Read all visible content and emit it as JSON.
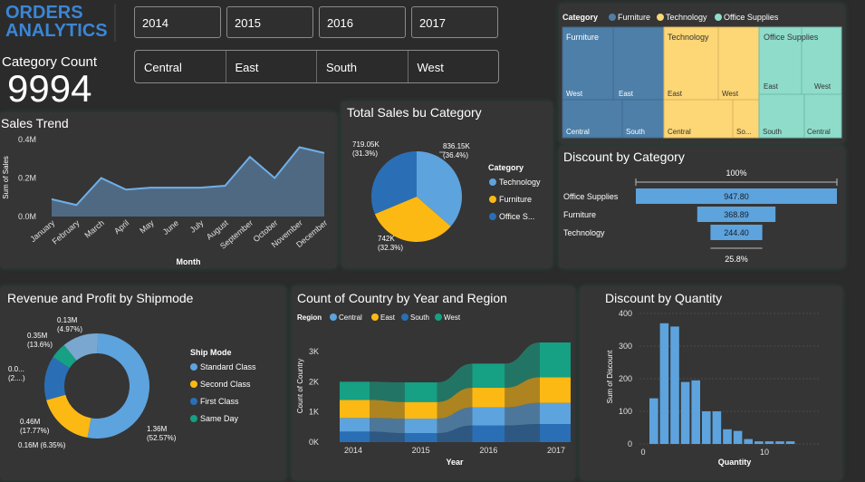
{
  "header": {
    "title_line1": "ORDERS",
    "title_line2": "ANALYTICS"
  },
  "years": [
    "2014",
    "2015",
    "2016",
    "2017"
  ],
  "regions": [
    "Central",
    "East",
    "South",
    "West"
  ],
  "kpi": {
    "label": "Category Count",
    "value": "9994"
  },
  "colors": {
    "blue": "#5da3de",
    "yellow": "#fdb913",
    "dark_blue": "#2a6fb5",
    "teal": "#16a084",
    "furniture": "#4e7fa8",
    "technology": "#fdd676",
    "office": "#8fdccb",
    "area": "#536f8c"
  },
  "sales_trend": {
    "title": "Sales Trend",
    "chart_data": {
      "type": "area",
      "categories": [
        "January",
        "February",
        "March",
        "April",
        "May",
        "June",
        "July",
        "August",
        "September",
        "October",
        "November",
        "December"
      ],
      "values": [
        0.09,
        0.06,
        0.2,
        0.14,
        0.15,
        0.15,
        0.15,
        0.16,
        0.31,
        0.2,
        0.36,
        0.33
      ],
      "ylabel": "Sum of Sales",
      "xlabel": "Month",
      "yticks": [
        "0.0M",
        "0.2M",
        "0.4M"
      ],
      "ylim": [
        0,
        0.4
      ]
    }
  },
  "total_sales": {
    "title": "Total Sales bu Category",
    "legend_title": "Category",
    "chart_data": {
      "type": "pie",
      "categories": [
        "Technology",
        "Furniture",
        "Office S..."
      ],
      "values": [
        836.15,
        742,
        719.05
      ],
      "labels": [
        [
          "836.15K",
          "(36.4%)"
        ],
        [
          "742K",
          "(32.3%)"
        ],
        [
          "719.05K",
          "(31.3%)"
        ]
      ]
    }
  },
  "treemap": {
    "legend_title": "Category",
    "legend": [
      "Furniture",
      "Technology",
      "Office Supplies"
    ],
    "groups": [
      {
        "name": "Furniture",
        "cells": [
          "West",
          "East",
          "Central",
          "South"
        ]
      },
      {
        "name": "Technology",
        "cells": [
          "East",
          "West",
          "Central",
          "So..."
        ]
      },
      {
        "name": "Office Supplies",
        "cells": [
          "East",
          "West",
          "South",
          "Central"
        ]
      }
    ]
  },
  "discount_category": {
    "title": "Discount by Category",
    "top_label": "100%",
    "bottom_label": "25.8%",
    "chart_data": {
      "type": "bar",
      "categories": [
        "Office Supplies",
        "Furniture",
        "Technology"
      ],
      "values": [
        947.8,
        368.89,
        244.4
      ],
      "labels": [
        "947.80",
        "368.89",
        "244.40"
      ]
    }
  },
  "shipmode": {
    "title": "Revenue and Profit by Shipmode",
    "legend_title": "Ship Mode",
    "chart_data": {
      "type": "pie",
      "categories": [
        "Standard Class",
        "Second Class",
        "First Class",
        "Same Day"
      ],
      "values": [
        52.57,
        17.77,
        13.6,
        4.97
      ],
      "labels": [
        [
          "1.36M",
          "(52.57%)"
        ],
        [
          "0.46M",
          "(17.77%)"
        ],
        [
          "0.35M",
          "(13.6%)"
        ],
        [
          "0.13M",
          "(4.97%)"
        ]
      ],
      "extra_labels": [
        "0.16M (6.35%)",
        "0.0...",
        "(2....)"
      ]
    }
  },
  "country": {
    "title": "Count of Country by Year and Region",
    "legend_title": "Region",
    "legend": [
      "Central",
      "East",
      "South",
      "West"
    ],
    "chart_data": {
      "type": "area",
      "categories": [
        "2014",
        "2015",
        "2016",
        "2017"
      ],
      "series": [
        {
          "name": "Central",
          "values": [
            450,
            480,
            600,
            700
          ]
        },
        {
          "name": "East",
          "values": [
            600,
            550,
            650,
            850
          ]
        },
        {
          "name": "South",
          "values": [
            350,
            300,
            550,
            600
          ]
        },
        {
          "name": "West",
          "values": [
            600,
            650,
            800,
            1150
          ]
        }
      ],
      "ylabel": "Count of Country",
      "xlabel": "Year",
      "yticks": [
        "0K",
        "1K",
        "2K",
        "3K"
      ],
      "ylim": [
        0,
        3300
      ]
    }
  },
  "quantity": {
    "title": "Discount by Quantity",
    "chart_data": {
      "type": "bar",
      "x": [
        1,
        2,
        3,
        4,
        5,
        6,
        7,
        8,
        9,
        10,
        11,
        12,
        13,
        14
      ],
      "values": [
        140,
        370,
        360,
        190,
        195,
        100,
        100,
        45,
        40,
        15,
        8,
        8,
        8,
        8
      ],
      "ylabel": "Sum of Discount",
      "xlabel": "Quantity",
      "yticks": [
        "0",
        "100",
        "200",
        "300",
        "400"
      ],
      "xticks": [
        "0",
        "10"
      ],
      "ylim": [
        0,
        400
      ]
    }
  }
}
